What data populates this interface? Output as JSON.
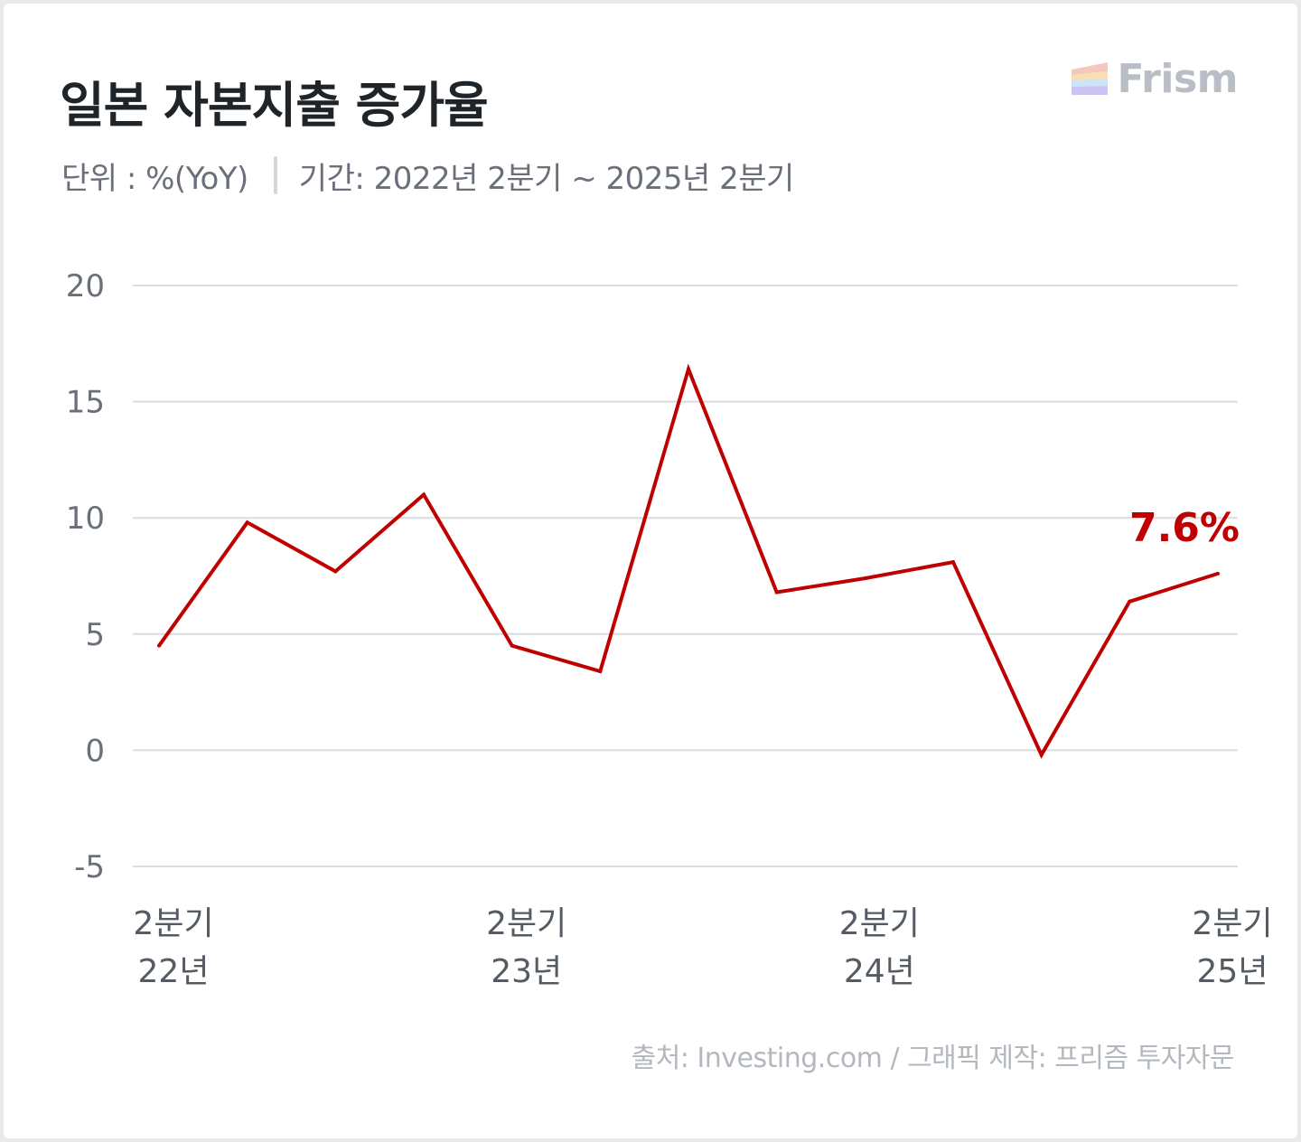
{
  "header": {
    "title": "일본 자본지출 증가율",
    "unit": "단위 : %(YoY)",
    "period": "기간: 2022년 2분기 ~ 2025년 2분기"
  },
  "logo": {
    "text": "Frism",
    "icon": "prism-stripes-icon"
  },
  "source": "출처: Investing.com / 그래픽 제작: 프리즘 투자자문",
  "colors": {
    "line": "#c00000",
    "grid": "#d9dce0",
    "title": "#1f2429"
  },
  "chart_data": {
    "type": "line",
    "title": "일본 자본지출 증가율",
    "ylim": [
      -5,
      20
    ],
    "yticks": [
      "20",
      "15",
      "10",
      "5",
      "0",
      "-5"
    ],
    "ytick_values": [
      20,
      15,
      10,
      5,
      0,
      -5
    ],
    "grid": true,
    "x": [
      "2022 Q2",
      "2022 Q3",
      "2022 Q4",
      "2023 Q1",
      "2023 Q2",
      "2023 Q3",
      "2023 Q4",
      "2024 Q1",
      "2024 Q2",
      "2024 Q3",
      "2024 Q4",
      "2025 Q1",
      "2025 Q2"
    ],
    "xtick_labels": [
      {
        "line1": "2분기",
        "line2": "22년",
        "x_index": 0
      },
      {
        "line1": "2분기",
        "line2": "23년",
        "x_index": 4
      },
      {
        "line1": "2분기",
        "line2": "24년",
        "x_index": 8
      },
      {
        "line1": "2분기",
        "line2": "25년",
        "x_index": 12
      }
    ],
    "series": [
      {
        "values": [
          4.5,
          9.8,
          7.7,
          11.0,
          4.5,
          3.4,
          16.4,
          6.8,
          7.4,
          8.1,
          -0.2,
          6.4,
          7.6
        ]
      }
    ],
    "annotation": {
      "text": "7.6%",
      "x_index": 12
    }
  }
}
